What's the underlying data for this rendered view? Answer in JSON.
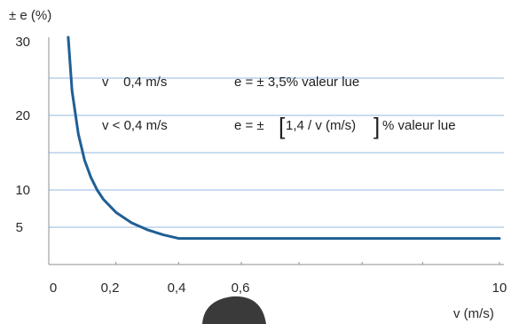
{
  "chart_data": {
    "type": "line",
    "ylabel": "± e (%)",
    "xlabel": "v (m/s)",
    "y_ticks": [
      5,
      10,
      20,
      30
    ],
    "y_tick_labels": [
      "5",
      "10",
      "20",
      "30"
    ],
    "x_tick_labels": [
      "0",
      "0,2",
      "0,4",
      "0,6",
      "10"
    ],
    "ylim": [
      0,
      30
    ],
    "grid": true,
    "series": [
      {
        "x": [
          0.04,
          0.06,
          0.08,
          0.1,
          0.12,
          0.14,
          0.16,
          0.2,
          0.25,
          0.3,
          0.35,
          0.4,
          10
        ],
        "values": [
          35,
          23.3,
          17.5,
          14,
          11.7,
          10,
          8.75,
          7,
          5.6,
          4.67,
          4,
          3.5,
          3.5
        ]
      }
    ],
    "colors": {
      "curve": "#1f5f95",
      "grid": "#a9c8e8",
      "axis": "#8f8f8f"
    },
    "annotations": {
      "line1_left": "v    0,4 m/s",
      "line1_right": "e = ± 3,5% valeur lue",
      "line2_left": "v < 0,4 m/s",
      "line2_right_pre": "e = ±",
      "line2_bracket_open": "[",
      "line2_formula": "1,4 / v (m/s)",
      "line2_bracket_close": "]",
      "line2_right_post": "% valeur lue"
    }
  }
}
